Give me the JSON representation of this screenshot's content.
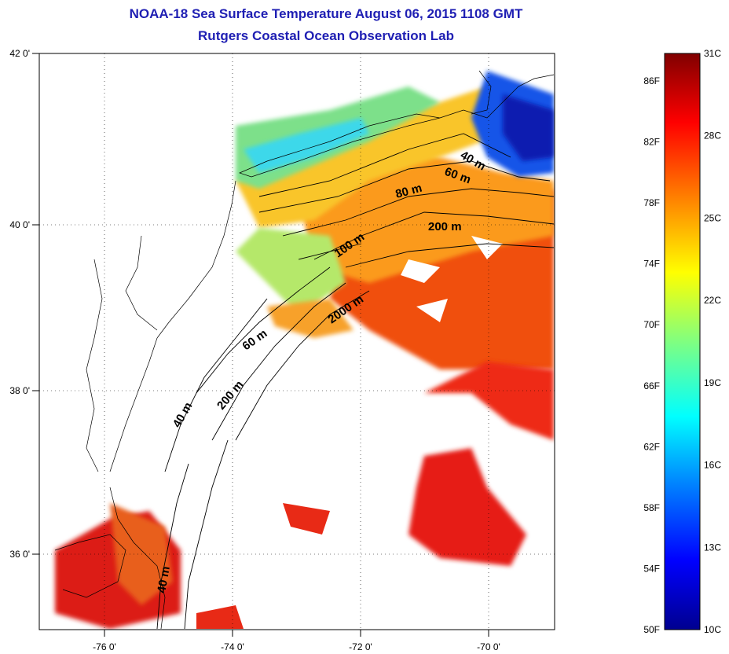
{
  "title": {
    "line1": "NOAA-18 Sea Surface Temperature August 06, 2015 1108 GMT",
    "line2": "Rutgers Coastal Ocean Observation Lab"
  },
  "map": {
    "lon_ticks": [
      "-76 0'",
      "-74 0'",
      "-72 0'",
      "-70 0'"
    ],
    "lat_ticks": [
      "42 0'",
      "40 0'",
      "38 0'",
      "36 0'"
    ],
    "depth_contour_labels": [
      "40 m",
      "60 m",
      "80 m",
      "200 m",
      "100 m",
      "2000 m",
      "60 m",
      "200 m",
      "40 m",
      "40 m"
    ]
  },
  "colorbar": {
    "fahrenheit": [
      "86F",
      "82F",
      "78F",
      "74F",
      "70F",
      "66F",
      "62F",
      "58F",
      "54F",
      "50F"
    ],
    "celsius": [
      "31C",
      "28C",
      "25C",
      "22C",
      "19C",
      "16C",
      "13C",
      "10C"
    ],
    "colors": [
      "#00008f",
      "#0000ff",
      "#0080ff",
      "#00ffff",
      "#80ff80",
      "#ffff00",
      "#ff8000",
      "#ff0000",
      "#800000"
    ]
  }
}
